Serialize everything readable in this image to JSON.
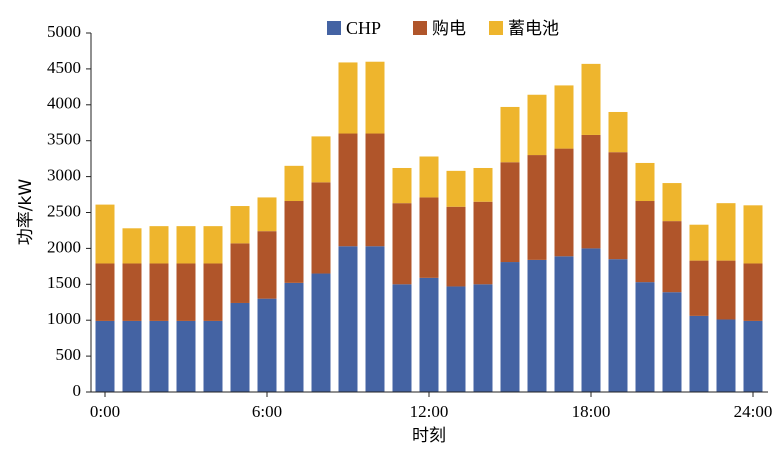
{
  "chart_data": {
    "type": "bar",
    "stacked": true,
    "title": "",
    "xlabel": "时刻",
    "ylabel": "功率/kW",
    "ylim": [
      0,
      5000
    ],
    "yticks": [
      0,
      500,
      1000,
      1500,
      2000,
      2500,
      3000,
      3500,
      4000,
      4500,
      5000
    ],
    "x_tick_labels": [
      {
        "label": "0:00",
        "hour": 0
      },
      {
        "label": "6:00",
        "hour": 6
      },
      {
        "label": "12:00",
        "hour": 12
      },
      {
        "label": "18:00",
        "hour": 18
      },
      {
        "label": "24:00",
        "hour": 24
      }
    ],
    "x_hours": [
      0,
      1,
      2,
      3,
      4,
      5,
      6,
      7,
      8,
      9,
      10,
      11,
      12,
      13,
      14,
      15,
      16,
      17,
      18,
      19,
      20,
      21,
      22,
      23,
      24
    ],
    "legend_position": "top-right",
    "series": [
      {
        "name": "CHP",
        "color": "#4463A3",
        "values": [
          990,
          990,
          990,
          990,
          990,
          1240,
          1300,
          1520,
          1650,
          2030,
          2030,
          1500,
          1590,
          1470,
          1500,
          1810,
          1840,
          1890,
          2000,
          1850,
          1530,
          1390,
          1060,
          1010,
          990
        ]
      },
      {
        "name": "购电",
        "color": "#B0552A",
        "values": [
          800,
          800,
          800,
          800,
          800,
          830,
          940,
          1140,
          1270,
          1570,
          1570,
          1130,
          1120,
          1110,
          1150,
          1390,
          1460,
          1500,
          1580,
          1490,
          1130,
          990,
          770,
          820,
          800
        ]
      },
      {
        "name": "蓄电池",
        "color": "#EEB52D",
        "values": [
          820,
          490,
          520,
          520,
          520,
          520,
          470,
          490,
          640,
          990,
          1000,
          490,
          570,
          500,
          470,
          770,
          840,
          880,
          990,
          560,
          530,
          530,
          500,
          800,
          810
        ]
      }
    ]
  }
}
